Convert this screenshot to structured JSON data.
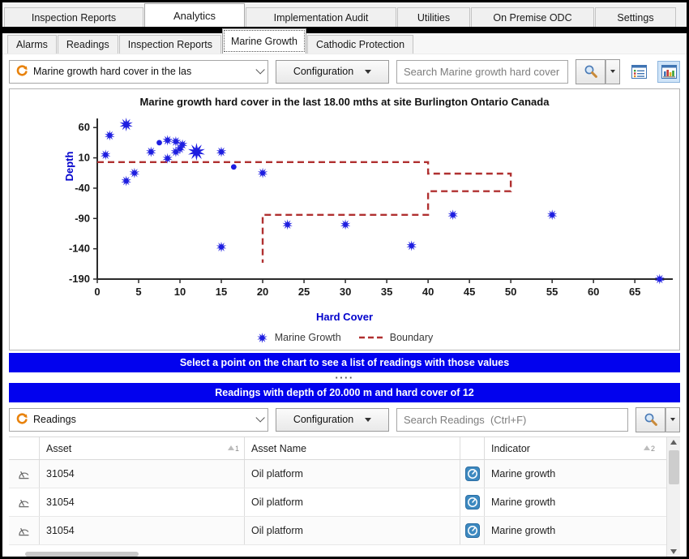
{
  "main_tabs": {
    "items": [
      {
        "label": "Inspection Reports",
        "active": false
      },
      {
        "label": "Analytics",
        "active": true
      },
      {
        "label": "Implementation Audit",
        "active": false
      },
      {
        "label": "Utilities",
        "active": false
      },
      {
        "label": "On Premise ODC",
        "active": false
      },
      {
        "label": "Settings",
        "active": false
      }
    ]
  },
  "sub_tabs": {
    "items": [
      {
        "label": "Alarms",
        "active": false
      },
      {
        "label": "Readings",
        "active": false
      },
      {
        "label": "Inspection Reports",
        "active": false
      },
      {
        "label": "Marine Growth",
        "active": true
      },
      {
        "label": "Cathodic Protection",
        "active": false
      }
    ]
  },
  "chart_toolbar": {
    "dataset_selector": "Marine growth hard cover in the las",
    "configuration_button": "Configuration",
    "search_placeholder": "Search Marine growth hard cover in the last"
  },
  "chart_data": {
    "type": "scatter",
    "title": "Marine growth hard cover in the last 18.00 mths at site Burlington Ontario Canada",
    "xlabel": "Hard Cover",
    "ylabel": "Depth",
    "xlim": [
      0,
      69
    ],
    "ylim": [
      -190,
      75
    ],
    "xticks": [
      0,
      5,
      10,
      15,
      20,
      25,
      30,
      35,
      40,
      45,
      50,
      55,
      60,
      65
    ],
    "yticks": [
      60,
      10,
      -40,
      -90,
      -140,
      -190
    ],
    "grid": false,
    "legend_position": "bottom",
    "legend": [
      "Marine Growth",
      "Boundary"
    ],
    "selected_point": {
      "hard_cover": 12,
      "depth": 20
    },
    "series": [
      {
        "name": "Marine Growth",
        "type": "scatter",
        "marker": "star",
        "color": "#1e1ee0",
        "points": [
          {
            "x": 1,
            "y": 15
          },
          {
            "x": 1.5,
            "y": 47
          },
          {
            "x": 3.5,
            "y": 65,
            "size": 8.5
          },
          {
            "x": 3.5,
            "y": -28
          },
          {
            "x": 4.5,
            "y": -15
          },
          {
            "x": 6.5,
            "y": 20
          },
          {
            "x": 7.5,
            "y": 35,
            "marker": "dot"
          },
          {
            "x": 8.5,
            "y": 39
          },
          {
            "x": 9.5,
            "y": 37
          },
          {
            "x": 8.5,
            "y": 9
          },
          {
            "x": 9.5,
            "y": 20
          },
          {
            "x": 10,
            "y": 25
          },
          {
            "x": 10.3,
            "y": 32
          },
          {
            "x": 12,
            "y": 20,
            "size": 11,
            "selected": true
          },
          {
            "x": 15,
            "y": 20
          },
          {
            "x": 16.5,
            "y": -5,
            "marker": "dot"
          },
          {
            "x": 20,
            "y": -15
          },
          {
            "x": 23,
            "y": -100
          },
          {
            "x": 30,
            "y": -100
          },
          {
            "x": 15,
            "y": -137
          },
          {
            "x": 38,
            "y": -135
          },
          {
            "x": 43,
            "y": -84
          },
          {
            "x": 55,
            "y": -84
          },
          {
            "x": 68,
            "y": -190
          }
        ]
      },
      {
        "name": "Boundary",
        "type": "line",
        "style": "dashed",
        "color": "#b03030",
        "points": [
          [
            0,
            3
          ],
          [
            40,
            3
          ],
          [
            40,
            -16
          ],
          [
            50,
            -16
          ],
          [
            50,
            -45
          ],
          [
            40,
            -45
          ],
          [
            40,
            -84
          ],
          [
            20,
            -84
          ],
          [
            20,
            -163
          ]
        ]
      }
    ]
  },
  "hint_banner": {
    "text": "Select a point on the chart to see a list of readings with those values"
  },
  "splitter": {
    "grip": "····"
  },
  "readings_banner": {
    "text": "Readings with depth of 20.000 m and hard cover of 12"
  },
  "readings_toolbar": {
    "dataset_selector": "Readings",
    "configuration_button": "Configuration",
    "search_placeholder": "Search Readings  (Ctrl+F)"
  },
  "readings_table": {
    "columns": [
      {
        "label": "Asset",
        "sort_order": "1"
      },
      {
        "label": "Asset Name",
        "sort_order": ""
      },
      {
        "label": "Indicator",
        "sort_order": "2"
      }
    ],
    "rows": [
      {
        "asset": "31054",
        "asset_name": "Oil platform",
        "indicator": "Marine growth"
      },
      {
        "asset": "31054",
        "asset_name": "Oil platform",
        "indicator": "Marine growth"
      },
      {
        "asset": "31054",
        "asset_name": "Oil platform",
        "indicator": "Marine growth"
      }
    ]
  },
  "colors": {
    "banner_blue": "#0202ee",
    "point_blue": "#1e1ee0",
    "boundary_red": "#b03030",
    "axis_label_blue": "#0000cc",
    "selected_icon_button_bg": "#cfe4f8"
  }
}
